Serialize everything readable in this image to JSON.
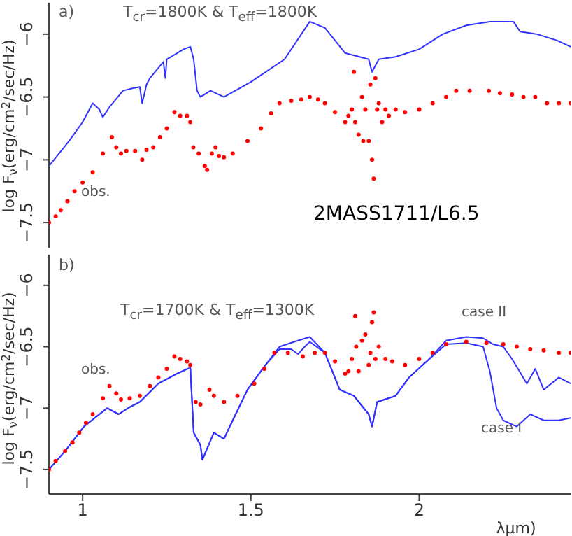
{
  "chart_data": [
    {
      "type": "line",
      "ylabel": "log F$_{ν}$(erg/cm$^{2}$/sec/Hz)",
      "xlim": [
        0.9,
        2.45
      ],
      "xticks": [
        1,
        1.5,
        2
      ],
      "ylim": [
        -7.7,
        -5.75
      ],
      "yticks": [
        -6,
        -6.5,
        -7,
        -7.5
      ],
      "tick_labels": "y",
      "annotations": [
        "a)",
        "T$_{cr}$=1800K & T$_{eff}$=1800K",
        "2MASS1711/L6.5",
        "obs."
      ],
      "series": [
        {
          "color": "#3333ff",
          "marker": "none",
          "line_style": "solid",
          "x": [
            0.9,
            0.93,
            0.96,
            1.0,
            1.03,
            1.05,
            1.06,
            1.08,
            1.12,
            1.15,
            1.17,
            1.177,
            1.19,
            1.2,
            1.24,
            1.246,
            1.25,
            1.3,
            1.32,
            1.33,
            1.34,
            1.35,
            1.38,
            1.42,
            1.5,
            1.6,
            1.675,
            1.72,
            1.78,
            1.85,
            1.86,
            1.88,
            1.93,
            2.0,
            2.07,
            2.14,
            2.21,
            2.28,
            2.3,
            2.35,
            2.41,
            2.45
          ],
          "values": [
            -7.05,
            -6.95,
            -6.85,
            -6.7,
            -6.55,
            -6.6,
            -6.66,
            -6.58,
            -6.45,
            -6.43,
            -6.42,
            -6.55,
            -6.4,
            -6.35,
            -6.22,
            -6.35,
            -6.2,
            -6.12,
            -6.1,
            -6.2,
            -6.45,
            -6.5,
            -6.45,
            -6.5,
            -6.38,
            -6.2,
            -5.9,
            -5.95,
            -6.15,
            -6.2,
            -6.3,
            -6.2,
            -6.18,
            -6.12,
            -6.0,
            -5.93,
            -5.9,
            -5.9,
            -5.98,
            -6.0,
            -6.05,
            -6.1
          ]
        },
        {
          "type": "scatter",
          "color": "#ff0000",
          "marker": "circle",
          "x": [
            0.9,
            0.92,
            0.935,
            0.955,
            0.976,
            1.0,
            1.03,
            1.06,
            1.087,
            1.1,
            1.114,
            1.13,
            1.156,
            1.177,
            1.19,
            1.21,
            1.23,
            1.25,
            1.273,
            1.29,
            1.31,
            1.32,
            1.329,
            1.345,
            1.363,
            1.37,
            1.384,
            1.395,
            1.405,
            1.42,
            1.446,
            1.49,
            1.53,
            1.56,
            1.585,
            1.62,
            1.65,
            1.675,
            1.7,
            1.72,
            1.75,
            1.78,
            1.79,
            1.8,
            1.806,
            1.81,
            1.82,
            1.83,
            1.834,
            1.84,
            1.85,
            1.855,
            1.86,
            1.865,
            1.87,
            1.875,
            1.88,
            1.89,
            1.9,
            1.91,
            1.93,
            1.958,
            2.0,
            2.04,
            2.08,
            2.11,
            2.15,
            2.207,
            2.24,
            2.276,
            2.31,
            2.345,
            2.38,
            2.415,
            2.45
          ],
          "values": [
            -7.5,
            -7.45,
            -7.4,
            -7.33,
            -7.25,
            -7.18,
            -7.1,
            -6.95,
            -6.82,
            -6.9,
            -6.95,
            -6.93,
            -6.93,
            -7.0,
            -6.92,
            -6.9,
            -6.82,
            -6.75,
            -6.62,
            -6.65,
            -6.65,
            -6.7,
            -6.9,
            -6.95,
            -7.05,
            -7.08,
            -6.95,
            -6.9,
            -6.97,
            -6.98,
            -6.95,
            -6.85,
            -6.75,
            -6.63,
            -6.55,
            -6.53,
            -6.52,
            -6.5,
            -6.52,
            -6.55,
            -6.62,
            -6.7,
            -6.65,
            -6.6,
            -6.3,
            -6.7,
            -6.8,
            -6.5,
            -6.85,
            -6.6,
            -6.85,
            -6.4,
            -7.0,
            -7.15,
            -6.35,
            -6.6,
            -6.55,
            -6.7,
            -6.6,
            -6.65,
            -6.6,
            -6.62,
            -6.6,
            -6.55,
            -6.5,
            -6.45,
            -6.45,
            -6.45,
            -6.47,
            -6.48,
            -6.5,
            -6.5,
            -6.55,
            -6.55,
            -6.55
          ]
        }
      ]
    },
    {
      "type": "line",
      "xlabel": "λμm)",
      "ylabel": "log F$_{ν}$(erg/cm$^{2}$/sec/Hz)",
      "xlim": [
        0.9,
        2.45
      ],
      "xticks": [
        1,
        1.5,
        2
      ],
      "ylim": [
        -7.7,
        -5.75
      ],
      "yticks": [
        -6,
        -6.5,
        -7,
        -7.5
      ],
      "annotations": [
        "b)",
        "T$_{cr}$=1700K & T$_{eff}$=1300K",
        "obs.",
        "case II",
        "case I"
      ],
      "series": [
        {
          "color": "#3333ff",
          "marker": "none",
          "line_style": "solid",
          "x": [
            0.9,
            0.948,
            1.004,
            1.073,
            1.107,
            1.135,
            1.17,
            1.225,
            1.28,
            1.32,
            1.33,
            1.35,
            1.356,
            1.39,
            1.42,
            1.446,
            1.49,
            1.543,
            1.585,
            1.62,
            1.64,
            1.66,
            1.675,
            1.72,
            1.764,
            1.806,
            1.85,
            1.86,
            1.875,
            1.93,
            1.97,
            2.03,
            2.08,
            2.14,
            2.19,
            2.21,
            2.23,
            2.25,
            2.29,
            2.33,
            2.37,
            2.415,
            2.45
          ],
          "values": [
            -7.5,
            -7.35,
            -7.15,
            -7.0,
            -7.05,
            -7.0,
            -6.95,
            -6.8,
            -6.72,
            -6.67,
            -7.2,
            -7.3,
            -7.42,
            -7.2,
            -7.25,
            -7.1,
            -6.85,
            -6.65,
            -6.52,
            -6.52,
            -6.56,
            -6.5,
            -6.46,
            -6.55,
            -6.85,
            -6.9,
            -7.05,
            -7.15,
            -6.95,
            -6.9,
            -6.75,
            -6.6,
            -6.48,
            -6.47,
            -6.5,
            -6.7,
            -7.0,
            -7.1,
            -7.15,
            -7.05,
            -7.1,
            -7.1,
            -7.08
          ]
        },
        {
          "color": "#3333ff",
          "marker": "none",
          "line_style": "solid",
          "x": [
            0.9,
            0.948,
            1.004,
            1.073,
            1.107,
            1.135,
            1.17,
            1.225,
            1.28,
            1.32,
            1.33,
            1.35,
            1.356,
            1.39,
            1.42,
            1.446,
            1.49,
            1.543,
            1.585,
            1.64,
            1.675,
            1.72,
            1.764,
            1.806,
            1.85,
            1.86,
            1.875,
            1.93,
            1.97,
            2.03,
            2.08,
            2.14,
            2.19,
            2.22,
            2.25,
            2.276,
            2.32,
            2.345,
            2.37,
            2.415,
            2.45
          ],
          "values": [
            -7.5,
            -7.35,
            -7.15,
            -7.0,
            -7.05,
            -7.0,
            -6.95,
            -6.8,
            -6.72,
            -6.67,
            -7.2,
            -7.3,
            -7.42,
            -7.2,
            -7.25,
            -7.1,
            -6.85,
            -6.65,
            -6.5,
            -6.45,
            -6.42,
            -6.55,
            -6.85,
            -6.9,
            -7.05,
            -7.15,
            -6.95,
            -6.9,
            -6.75,
            -6.6,
            -6.45,
            -6.42,
            -6.43,
            -6.48,
            -6.5,
            -6.6,
            -6.8,
            -6.68,
            -6.85,
            -6.75,
            -6.8
          ]
        },
        {
          "type": "scatter",
          "color": "#ff0000",
          "marker": "circle",
          "x": [
            0.9,
            0.92,
            0.948,
            0.97,
            0.99,
            1.01,
            1.03,
            1.06,
            1.08,
            1.1,
            1.114,
            1.14,
            1.17,
            1.2,
            1.225,
            1.25,
            1.273,
            1.29,
            1.31,
            1.32,
            1.336,
            1.35,
            1.377,
            1.39,
            1.42,
            1.46,
            1.51,
            1.54,
            1.57,
            1.61,
            1.654,
            1.69,
            1.72,
            1.75,
            1.78,
            1.79,
            1.8,
            1.81,
            1.813,
            1.82,
            1.83,
            1.84,
            1.85,
            1.855,
            1.86,
            1.865,
            1.87,
            1.88,
            1.9,
            1.92,
            1.958,
            2.0,
            2.04,
            2.08,
            2.14,
            2.2,
            2.25,
            2.29,
            2.33,
            2.37,
            2.415,
            2.45
          ],
          "values": [
            -7.5,
            -7.43,
            -7.35,
            -7.28,
            -7.2,
            -7.12,
            -7.05,
            -6.92,
            -6.82,
            -6.88,
            -6.93,
            -6.92,
            -6.9,
            -6.82,
            -6.75,
            -6.68,
            -6.58,
            -6.6,
            -6.62,
            -6.65,
            -6.95,
            -6.97,
            -6.85,
            -6.9,
            -6.95,
            -6.9,
            -6.8,
            -6.68,
            -6.55,
            -6.55,
            -6.58,
            -6.55,
            -6.55,
            -6.62,
            -6.72,
            -6.7,
            -6.6,
            -6.25,
            -6.5,
            -6.7,
            -6.45,
            -6.4,
            -6.65,
            -6.55,
            -6.3,
            -6.22,
            -6.6,
            -6.5,
            -6.6,
            -6.62,
            -6.65,
            -6.6,
            -6.55,
            -6.48,
            -6.46,
            -6.47,
            -6.48,
            -6.5,
            -6.52,
            -6.53,
            -6.55,
            -6.55
          ]
        }
      ]
    }
  ]
}
